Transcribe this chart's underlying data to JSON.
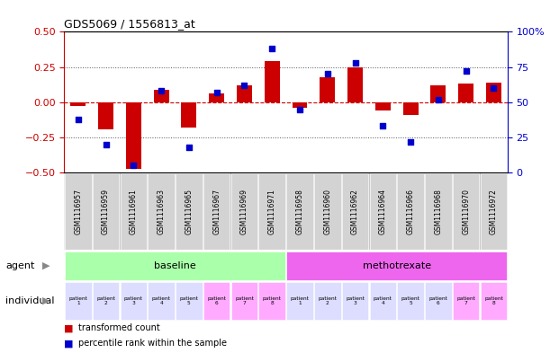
{
  "title": "GDS5069 / 1556813_at",
  "gsm_labels": [
    "GSM1116957",
    "GSM1116959",
    "GSM1116961",
    "GSM1116963",
    "GSM1116965",
    "GSM1116967",
    "GSM1116969",
    "GSM1116971",
    "GSM1116958",
    "GSM1116960",
    "GSM1116962",
    "GSM1116964",
    "GSM1116966",
    "GSM1116968",
    "GSM1116970",
    "GSM1116972"
  ],
  "bar_values": [
    -0.03,
    -0.19,
    -0.47,
    0.09,
    -0.18,
    0.06,
    0.12,
    0.29,
    -0.04,
    0.18,
    0.25,
    -0.06,
    -0.09,
    0.12,
    0.13,
    0.14
  ],
  "dot_values": [
    38,
    20,
    5,
    58,
    18,
    57,
    62,
    88,
    45,
    70,
    78,
    33,
    22,
    52,
    72,
    60
  ],
  "ylim_left": [
    -0.5,
    0.5
  ],
  "ylim_right": [
    0,
    100
  ],
  "left_yticks": [
    -0.5,
    -0.25,
    0.0,
    0.25,
    0.5
  ],
  "right_yticks": [
    0,
    25,
    50,
    75,
    100
  ],
  "right_yticklabels": [
    "0",
    "25",
    "50",
    "75",
    "100%"
  ],
  "bar_color": "#cc0000",
  "dot_color": "#0000cc",
  "zero_line_color": "#cc0000",
  "dotted_line_color": "#555555",
  "dotted_levels": [
    -0.25,
    0.25
  ],
  "agent_groups": [
    {
      "label": "baseline",
      "start": 0,
      "end": 8,
      "color": "#aaffaa"
    },
    {
      "label": "methotrexate",
      "start": 8,
      "end": 16,
      "color": "#ee66ee"
    }
  ],
  "individual_labels": [
    "patient\n1",
    "patient\n2",
    "patient\n3",
    "patient\n4",
    "patient\n5",
    "patient\n6",
    "patient\n7",
    "patient\n8",
    "patient\n1",
    "patient\n2",
    "patient\n3",
    "patient\n4",
    "patient\n5",
    "patient\n6",
    "patient\n7",
    "patient\n8"
  ],
  "individual_colors": [
    "#ddddff",
    "#ddddff",
    "#ddddff",
    "#ddddff",
    "#ddddff",
    "#ffaaff",
    "#ffaaff",
    "#ffaaff",
    "#ddddff",
    "#ddddff",
    "#ddddff",
    "#ddddff",
    "#ddddff",
    "#ddddff",
    "#ffaaff",
    "#ffaaff"
  ],
  "legend_bar_label": "transformed count",
  "legend_dot_label": "percentile rank within the sample",
  "agent_label": "agent",
  "individual_label": "individual",
  "background_color": "#ffffff",
  "bar_width": 0.55,
  "dot_size": 20
}
